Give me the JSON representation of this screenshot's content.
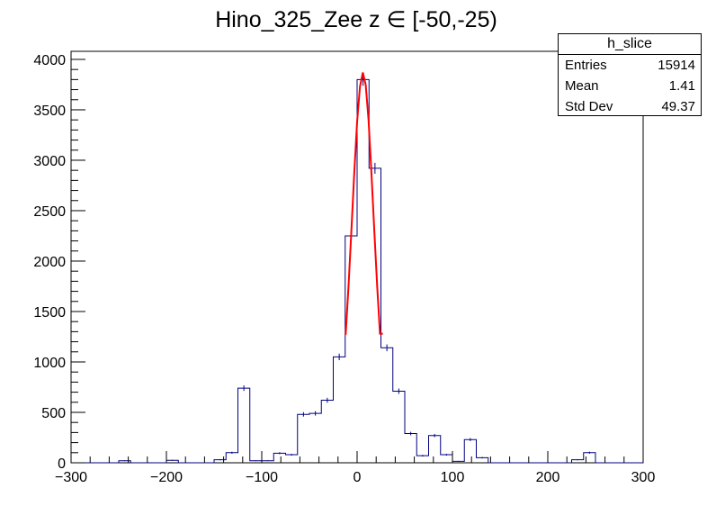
{
  "chart_data": {
    "type": "histogram",
    "title": "Hino_325_Zee z  ∈ [-50,-25)",
    "xlabel": "",
    "ylabel": "",
    "xlim": [
      -300,
      300
    ],
    "ylim": [
      0,
      4080
    ],
    "xticks": [
      -300,
      -200,
      -100,
      0,
      100,
      200,
      300
    ],
    "yticks": [
      0,
      500,
      1000,
      1500,
      2000,
      2500,
      3000,
      3500,
      4000
    ],
    "grid": false,
    "legend": "none",
    "histogram": {
      "color": "#00007f",
      "bin_edges": [
        -300,
        -287.5,
        -275,
        -262.5,
        -250,
        -237.5,
        -225,
        -212.5,
        -200,
        -187.5,
        -175,
        -162.5,
        -150,
        -137.5,
        -125,
        -112.5,
        -100,
        -87.5,
        -75,
        -62.5,
        -50,
        -37.5,
        -25,
        -12.5,
        0,
        12.5,
        25,
        37.5,
        50,
        62.5,
        75,
        87.5,
        100,
        112.5,
        125,
        137.5,
        150,
        162.5,
        175,
        187.5,
        200,
        212.5,
        225,
        237.5,
        250,
        262.5,
        275,
        287.5,
        300
      ],
      "counts": [
        0,
        0,
        0,
        0,
        20,
        0,
        0,
        0,
        25,
        0,
        0,
        0,
        30,
        100,
        740,
        20,
        20,
        95,
        80,
        480,
        490,
        620,
        1050,
        2250,
        3800,
        2920,
        1140,
        710,
        290,
        70,
        270,
        80,
        15,
        230,
        50,
        0,
        0,
        0,
        0,
        0,
        0,
        0,
        30,
        100,
        0,
        0,
        0,
        0
      ]
    },
    "fit": {
      "color": "#ff0000",
      "x": [
        -12,
        -9,
        -6,
        -3,
        0,
        3,
        6,
        9,
        12,
        15,
        18,
        21,
        24,
        27
      ],
      "y": [
        1270,
        1750,
        2300,
        2870,
        3380,
        3730,
        3870,
        3750,
        3400,
        2880,
        2310,
        1760,
        1280,
        1280
      ]
    },
    "stats": {
      "title": "h_slice",
      "rows": [
        {
          "label": "Entries",
          "value": "15914"
        },
        {
          "label": "Mean",
          "value": "1.41"
        },
        {
          "label": "Std Dev",
          "value": "49.37"
        }
      ]
    }
  }
}
